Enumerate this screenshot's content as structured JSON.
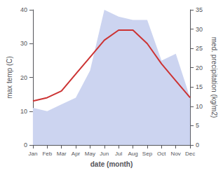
{
  "chart_data": {
    "type": "line",
    "categories": [
      "Jan",
      "Feb",
      "Mar",
      "Apr",
      "May",
      "Jun",
      "Jul",
      "Aug",
      "Sep",
      "Oct",
      "Nov",
      "Dec"
    ],
    "series": [
      {
        "type": "area",
        "color": "#ccd4f0",
        "values": [
          11,
          10,
          12,
          14,
          22,
          40,
          38,
          37,
          37,
          25,
          27,
          14
        ]
      },
      {
        "type": "line",
        "color": "#cc3333",
        "values": [
          13,
          14,
          16,
          21,
          26,
          31,
          34,
          34,
          30,
          24,
          19,
          14
        ]
      }
    ],
    "xlabel": "date (month)",
    "ylabel": "max temp (C)",
    "y2label": "med. precipitation (kg/m2)",
    "ylim": [
      0,
      40
    ],
    "yticks": [
      0,
      10,
      20,
      30,
      40
    ],
    "y2lim": [
      0,
      35
    ],
    "y2ticks": [
      0,
      5,
      10,
      15,
      20,
      25,
      30,
      35
    ],
    "grid": false
  }
}
